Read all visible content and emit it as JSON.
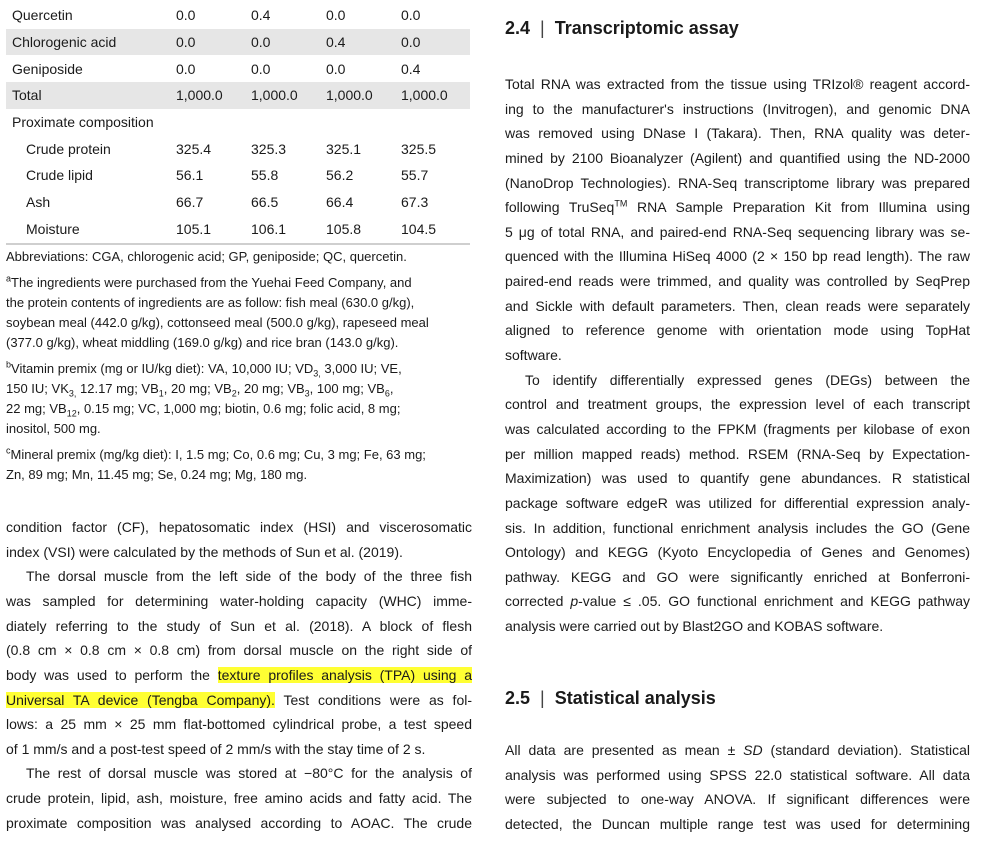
{
  "table": {
    "rows": [
      {
        "label": "Quercetin",
        "values": [
          "0.0",
          "0.4",
          "0.0",
          "0.0"
        ],
        "shade": false
      },
      {
        "label": "Chlorogenic acid",
        "values": [
          "0.0",
          "0.0",
          "0.4",
          "0.0"
        ],
        "shade": true
      },
      {
        "label": "Geniposide",
        "values": [
          "0.0",
          "0.0",
          "0.0",
          "0.4"
        ],
        "shade": false
      },
      {
        "label": "Total",
        "values": [
          "1,000.0",
          "1,000.0",
          "1,000.0",
          "1,000.0"
        ],
        "shade": true
      },
      {
        "label": "Proximate composition",
        "values": [],
        "shade": false
      },
      {
        "label": "Crude protein",
        "values": [
          "325.4",
          "325.3",
          "325.1",
          "325.5"
        ],
        "shade": false,
        "indent": true
      },
      {
        "label": "Crude lipid",
        "values": [
          "56.1",
          "55.8",
          "56.2",
          "55.7"
        ],
        "shade": false,
        "indent": true
      },
      {
        "label": "Ash",
        "values": [
          "66.7",
          "66.5",
          "66.4",
          "67.3"
        ],
        "shade": false,
        "indent": true
      },
      {
        "label": "Moisture",
        "values": [
          "105.1",
          "106.1",
          "105.8",
          "104.5"
        ],
        "shade": false,
        "indent": true
      }
    ]
  },
  "footnotes": [
    [
      [
        "Abbreviations: CGA, chlorogenic acid; GP, geniposide; QC, quercetin."
      ]
    ],
    [
      [
        {
          "t": "a",
          "sup": 1
        },
        "The ingredients were purchased from the Yuehai Feed Company, and"
      ],
      [
        "the protein contents of ingredients are as follow: fish meal (630.0 g/kg),"
      ],
      [
        "soybean meal (442.0 g/kg), cottonseed meal (500.0 g/kg), rapeseed meal"
      ],
      [
        "(377.0 g/kg), wheat middling (169.0 g/kg) and rice bran (143.0 g/kg)."
      ]
    ],
    [
      [
        {
          "t": "b",
          "sup": 1
        },
        "Vitamin premix (mg or IU/kg diet): VA, 10,000 IU; VD",
        {
          "t": "3,",
          "sub": 1
        },
        " 3,000 IU; VE,"
      ],
      [
        "150 IU; VK",
        {
          "t": "3,",
          "sub": 1
        },
        " 12.17 mg; VB",
        {
          "t": "1",
          "sub": 1
        },
        ", 20 mg; VB",
        {
          "t": "2",
          "sub": 1
        },
        ", 20 mg; VB",
        {
          "t": "3",
          "sub": 1
        },
        ", 100 mg; VB",
        {
          "t": "6",
          "sub": 1
        },
        ","
      ],
      [
        "22 mg; VB",
        {
          "t": "12",
          "sub": 1
        },
        ", 0.15 mg; VC, 1,000 mg; biotin, 0.6 mg; folic acid, 8 mg;"
      ],
      [
        "inositol, 500 mg."
      ]
    ],
    [
      [
        {
          "t": "c",
          "sup": 1
        },
        "Mineral premix (mg/kg diet): I, 1.5 mg; Co, 0.6 mg; Cu, 3 mg; Fe, 63 mg;"
      ],
      [
        "Zn, 89 mg; Mn, 11.45 mg; Se, 0.24 mg; Mg, 180 mg."
      ]
    ]
  ],
  "left_body": [
    {
      "j": 1,
      "s": [
        "condition factor (CF), hepatosomatic index (HSI) and viscerosomatic"
      ]
    },
    {
      "j": 0,
      "s": [
        "index (VSI) were calculated by the methods of Sun et al. (2019)."
      ]
    },
    {
      "j": 1,
      "i": 1,
      "s": [
        "The dorsal muscle from the left side of the body of the three fish"
      ]
    },
    {
      "j": 1,
      "s": [
        "was sampled for determining water-holding capacity (WHC) imme-"
      ]
    },
    {
      "j": 1,
      "s": [
        "diately referring to the study of Sun et al. (2018). A block of flesh"
      ]
    },
    {
      "j": 1,
      "s": [
        "(0.8 cm × 0.8 cm × 0.8 cm) from dorsal muscle on the right side of"
      ]
    },
    {
      "j": 1,
      "s": [
        "body was used to perform the ",
        {
          "t": "texture profiles analysis (TPA) using a",
          "hl": 1
        }
      ]
    },
    {
      "j": 1,
      "s": [
        {
          "t": "Universal TA device (Tengba Company).",
          "hl": 1
        },
        " Test conditions were as fol-"
      ]
    },
    {
      "j": 1,
      "s": [
        "lows: a 25 mm × 25 mm flat-bottomed cylindrical probe, a test speed"
      ]
    },
    {
      "j": 0,
      "s": [
        "of 1 mm/s and a post-test speed of 2 mm/s with the stay time of 2 s."
      ]
    },
    {
      "j": 1,
      "i": 1,
      "s": [
        "The rest of dorsal muscle was stored at −80°C for the analysis of"
      ]
    },
    {
      "j": 1,
      "s": [
        "crude protein, lipid, ash, moisture, free amino acids and fatty acid. The"
      ]
    },
    {
      "j": 1,
      "s": [
        "proximate composition was analysed according to AOAC. The crude"
      ]
    }
  ],
  "section_24": {
    "number": "2.4",
    "separator": "|",
    "title": "Transcriptomic assay"
  },
  "right_body_24": [
    {
      "j": 1,
      "s": [
        "Total RNA was extracted from the tissue using TRIzol® reagent accord-"
      ]
    },
    {
      "j": 1,
      "s": [
        "ing to the manufacturer's instructions (Invitrogen), and genomic DNA"
      ]
    },
    {
      "j": 1,
      "s": [
        "was removed using DNase I (Takara). Then, RNA quality was deter-"
      ]
    },
    {
      "j": 1,
      "s": [
        "mined by 2100 Bioanalyzer (Agilent) and quantified using the ND-2000"
      ]
    },
    {
      "j": 1,
      "s": [
        "(NanoDrop Technologies). RNA-Seq transcriptome library was prepared"
      ]
    },
    {
      "j": 1,
      "s": [
        "following TruSeq",
        {
          "t": "TM",
          "sup": 1
        },
        " RNA Sample Preparation Kit from Illumina using"
      ]
    },
    {
      "j": 1,
      "s": [
        "5 μg of total RNA, and paired-end RNA-Seq sequencing library was se-"
      ]
    },
    {
      "j": 1,
      "s": [
        "quenced with the Illumina HiSeq 4000 (2 × 150 bp read length). The raw"
      ]
    },
    {
      "j": 1,
      "s": [
        "paired-end reads were trimmed, and quality was controlled by SeqPrep"
      ]
    },
    {
      "j": 1,
      "s": [
        "and Sickle with default parameters. Then, clean reads were separately"
      ]
    },
    {
      "j": 1,
      "s": [
        "aligned to reference genome with orientation mode using TopHat"
      ]
    },
    {
      "j": 0,
      "s": [
        "software."
      ]
    },
    {
      "j": 1,
      "i": 1,
      "s": [
        "To identify differentially expressed genes (DEGs) between the"
      ]
    },
    {
      "j": 1,
      "s": [
        "control and treatment groups, the expression level of each transcript"
      ]
    },
    {
      "j": 1,
      "s": [
        "was calculated according to the FPKM (fragments per kilobase of exon"
      ]
    },
    {
      "j": 1,
      "s": [
        "per million mapped reads) method. RSEM (RNA-Seq by Expectation-"
      ]
    },
    {
      "j": 1,
      "s": [
        "Maximization) was used to quantify gene abundances. R statistical"
      ]
    },
    {
      "j": 1,
      "s": [
        "package software edgeR was utilized for differential expression analy-"
      ]
    },
    {
      "j": 1,
      "s": [
        "sis. In addition, functional enrichment analysis includes the GO (Gene"
      ]
    },
    {
      "j": 1,
      "s": [
        "Ontology) and KEGG (Kyoto Encyclopedia of Genes and Genomes)"
      ]
    },
    {
      "j": 1,
      "s": [
        "pathway. KEGG and GO were significantly enriched at Bonferroni-"
      ]
    },
    {
      "j": 1,
      "s": [
        "corrected ",
        {
          "t": "p",
          "it": 1
        },
        "-value ≤ .05. GO functional enrichment and KEGG pathway"
      ]
    },
    {
      "j": 0,
      "s": [
        "analysis were carried out by Blast2GO and KOBAS software."
      ]
    }
  ],
  "section_25": {
    "number": "2.5",
    "separator": "|",
    "title": "Statistical analysis"
  },
  "right_body_25": [
    {
      "j": 1,
      "s": [
        "All data are presented as mean ± ",
        {
          "t": "SD",
          "it": 1
        },
        " (standard deviation). Statistical"
      ]
    },
    {
      "j": 1,
      "s": [
        "analysis was performed using SPSS 22.0 statistical software. All data"
      ]
    },
    {
      "j": 1,
      "s": [
        "were subjected to one-way ANOVA. If significant differences were"
      ]
    },
    {
      "j": 1,
      "s": [
        "detected, the Duncan multiple range test was used for determining"
      ]
    }
  ],
  "colors": {
    "highlight": "#ffff33",
    "table_shade": "#e6e6e6"
  }
}
